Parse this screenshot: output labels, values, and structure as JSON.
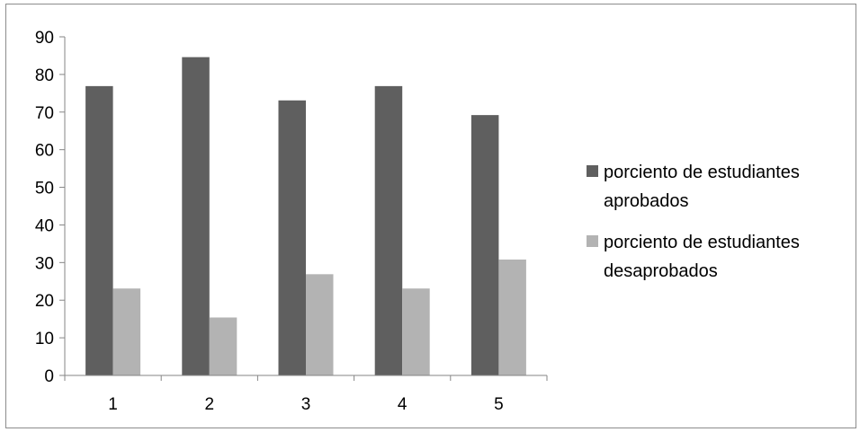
{
  "chart_data": {
    "type": "bar",
    "categories": [
      "1",
      "2",
      "3",
      "4",
      "5"
    ],
    "series": [
      {
        "name": "porciento de estudiantes aprobados",
        "legend_lines": [
          "porciento de estudiantes",
          "aprobados"
        ],
        "color": "#5f5f5f",
        "values": [
          76.9,
          84.6,
          73.1,
          76.9,
          69.2
        ]
      },
      {
        "name": "porciento de estudiantes desaprobados",
        "legend_lines": [
          "porciento de estudiantes",
          "desaprobados"
        ],
        "color": "#b3b3b3",
        "values": [
          23.1,
          15.4,
          26.9,
          23.1,
          30.8
        ]
      }
    ],
    "yticks": [
      "0",
      "10",
      "20",
      "30",
      "40",
      "50",
      "60",
      "70",
      "80",
      "90"
    ],
    "ylim": [
      0,
      90
    ],
    "grid": false,
    "legend_position": "right",
    "title": "",
    "xlabel": "",
    "ylabel": ""
  }
}
